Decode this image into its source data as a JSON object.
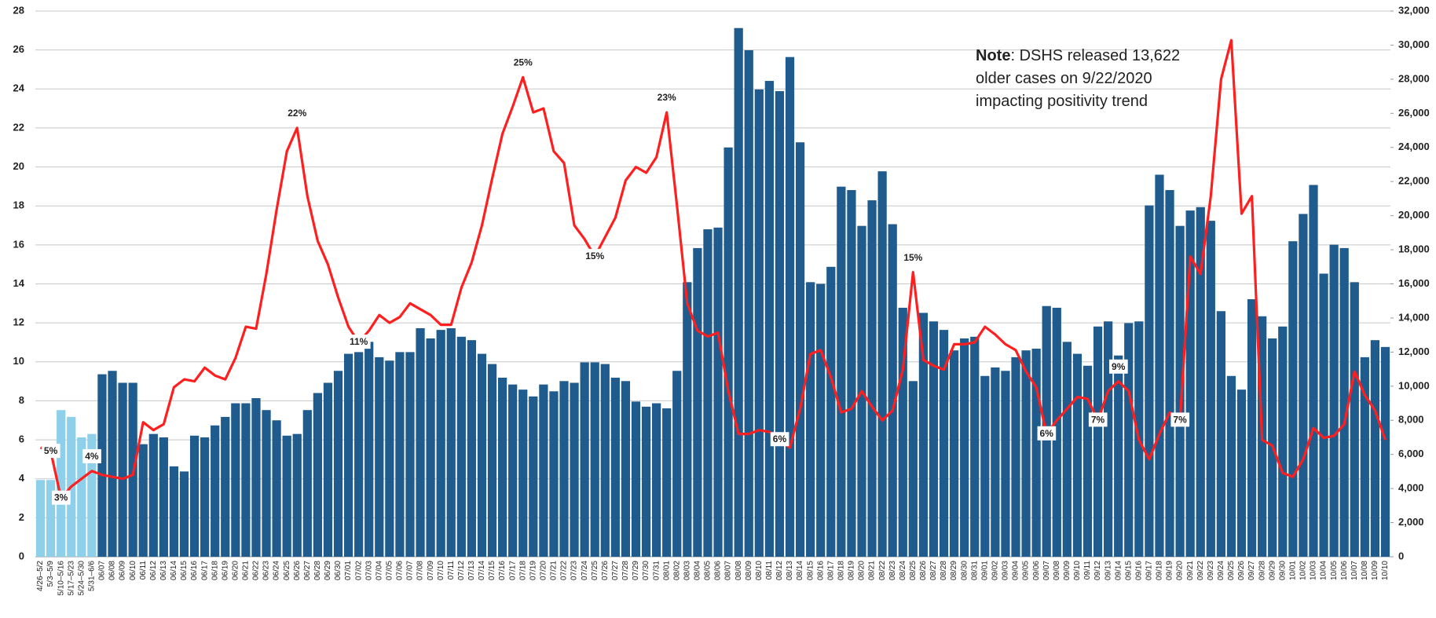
{
  "chart_data": {
    "type": "combo",
    "annotation": {
      "lines": [
        [
          {
            "text": "Note",
            "bold": true
          },
          {
            "text": ": DSHS released 13,622"
          }
        ],
        [
          {
            "text": "older cases on 9/22/2020"
          }
        ],
        [
          {
            "text": "impacting positivity trend"
          }
        ]
      ]
    },
    "categories": [
      "4/26–5/2",
      "5/3–5/9",
      "5/10–5/16",
      "5/17–5/23",
      "5/24–5/30",
      "5/31–6/6",
      "06/07",
      "06/08",
      "06/09",
      "06/10",
      "06/11",
      "06/12",
      "06/13",
      "06/14",
      "06/15",
      "06/16",
      "06/17",
      "06/18",
      "06/19",
      "06/20",
      "06/21",
      "06/22",
      "06/23",
      "06/24",
      "06/25",
      "06/26",
      "06/27",
      "06/28",
      "06/29",
      "06/30",
      "07/01",
      "07/02",
      "07/03",
      "07/04",
      "07/05",
      "07/06",
      "07/07",
      "07/08",
      "07/09",
      "07/10",
      "07/11",
      "07/12",
      "07/13",
      "07/14",
      "07/15",
      "07/16",
      "07/17",
      "07/18",
      "07/19",
      "07/20",
      "07/21",
      "07/22",
      "07/23",
      "07/24",
      "07/25",
      "07/26",
      "07/27",
      "07/28",
      "07/29",
      "07/30",
      "07/31",
      "08/01",
      "08/02",
      "08/03",
      "08/04",
      "08/05",
      "08/06",
      "08/07",
      "08/08",
      "08/09",
      "08/10",
      "08/11",
      "08/12",
      "08/13",
      "08/14",
      "08/15",
      "08/16",
      "08/17",
      "08/18",
      "08/19",
      "08/20",
      "08/21",
      "08/22",
      "08/23",
      "08/24",
      "08/25",
      "08/26",
      "08/27",
      "08/28",
      "08/29",
      "08/30",
      "08/31",
      "09/01",
      "09/02",
      "09/03",
      "09/04",
      "09/05",
      "09/06",
      "09/07",
      "09/08",
      "09/09",
      "09/10",
      "09/11",
      "09/12",
      "09/13",
      "09/14",
      "09/15",
      "09/16",
      "09/17",
      "09/18",
      "09/19",
      "09/20",
      "09/21",
      "09/22",
      "09/23",
      "09/24",
      "09/25",
      "09/26",
      "09/27",
      "09/28",
      "09/29",
      "09/30",
      "10/01",
      "10/02",
      "10/03",
      "10/04",
      "10/05",
      "10/06",
      "10/07",
      "10/08",
      "10/09",
      "10/10"
    ],
    "series": [
      {
        "type": "bar",
        "axis": "y2",
        "colors": [
          "#8ecfe9",
          "#8ecfe9",
          "#8ecfe9",
          "#8ecfe9",
          "#8ecfe9",
          "#8ecfe9",
          "#1f5b8c",
          "#1f5b8c",
          "#1f5b8c",
          "#1f5b8c",
          "#1f5b8c",
          "#1f5b8c",
          "#1f5b8c",
          "#1f5b8c",
          "#1f5b8c",
          "#1f5b8c",
          "#1f5b8c",
          "#1f5b8c",
          "#1f5b8c",
          "#1f5b8c",
          "#1f5b8c",
          "#1f5b8c",
          "#1f5b8c",
          "#1f5b8c",
          "#1f5b8c",
          "#1f5b8c",
          "#1f5b8c",
          "#1f5b8c",
          "#1f5b8c",
          "#1f5b8c",
          "#1f5b8c",
          "#1f5b8c",
          "#1f5b8c",
          "#1f5b8c",
          "#1f5b8c",
          "#1f5b8c",
          "#1f5b8c",
          "#1f5b8c",
          "#1f5b8c",
          "#1f5b8c",
          "#1f5b8c",
          "#1f5b8c",
          "#1f5b8c",
          "#1f5b8c",
          "#1f5b8c",
          "#1f5b8c",
          "#1f5b8c",
          "#1f5b8c",
          "#1f5b8c",
          "#1f5b8c",
          "#1f5b8c",
          "#1f5b8c",
          "#1f5b8c",
          "#1f5b8c",
          "#1f5b8c",
          "#1f5b8c",
          "#1f5b8c",
          "#1f5b8c",
          "#1f5b8c",
          "#1f5b8c",
          "#1f5b8c",
          "#1f5b8c",
          "#1f5b8c",
          "#1f5b8c",
          "#1f5b8c",
          "#1f5b8c",
          "#1f5b8c",
          "#1f5b8c",
          "#1f5b8c",
          "#1f5b8c",
          "#1f5b8c",
          "#1f5b8c",
          "#1f5b8c",
          "#1f5b8c",
          "#1f5b8c",
          "#1f5b8c",
          "#1f5b8c",
          "#1f5b8c",
          "#1f5b8c",
          "#1f5b8c",
          "#1f5b8c",
          "#1f5b8c",
          "#1f5b8c",
          "#1f5b8c",
          "#1f5b8c",
          "#1f5b8c",
          "#1f5b8c",
          "#1f5b8c",
          "#1f5b8c",
          "#1f5b8c",
          "#1f5b8c",
          "#1f5b8c",
          "#1f5b8c",
          "#1f5b8c",
          "#1f5b8c",
          "#1f5b8c",
          "#1f5b8c",
          "#1f5b8c",
          "#1f5b8c",
          "#1f5b8c",
          "#1f5b8c",
          "#1f5b8c",
          "#1f5b8c",
          "#1f5b8c",
          "#1f5b8c",
          "#1f5b8c",
          "#1f5b8c",
          "#1f5b8c",
          "#1f5b8c",
          "#1f5b8c",
          "#1f5b8c",
          "#1f5b8c",
          "#1f5b8c",
          "#1f5b8c",
          "#1f5b8c",
          "#1f5b8c",
          "#1f5b8c",
          "#1f5b8c",
          "#1f5b8c",
          "#1f5b8c",
          "#1f5b8c",
          "#1f5b8c",
          "#1f5b8c",
          "#1f5b8c",
          "#1f5b8c",
          "#1f5b8c",
          "#1f5b8c",
          "#1f5b8c",
          "#1f5b8c",
          "#1f5b8c",
          "#1f5b8c",
          "#1f5b8c"
        ],
        "values": [
          4500,
          4500,
          8600,
          8200,
          7000,
          7200,
          10700,
          10900,
          10200,
          10200,
          6600,
          7200,
          7000,
          5300,
          5000,
          7100,
          7000,
          7700,
          8200,
          9000,
          9000,
          9300,
          8600,
          8000,
          7100,
          7200,
          8600,
          9600,
          10200,
          10900,
          11900,
          12000,
          12600,
          11700,
          11500,
          12000,
          12000,
          13400,
          12800,
          13300,
          13400,
          12900,
          12700,
          11900,
          11300,
          10500,
          10100,
          9800,
          9400,
          10100,
          9700,
          10300,
          10200,
          11400,
          11400,
          11300,
          10500,
          10300,
          9100,
          8800,
          9000,
          8700,
          10900,
          16100,
          18100,
          19200,
          19300,
          24000,
          31000,
          29700,
          27400,
          27900,
          27300,
          29300,
          24300,
          16100,
          16000,
          17000,
          21700,
          21500,
          19400,
          20900,
          22600,
          19500,
          14600,
          10300,
          14300,
          13800,
          13300,
          12100,
          12800,
          12900,
          10600,
          11100,
          10900,
          11700,
          12100,
          12200,
          14700,
          14600,
          12600,
          11900,
          11200,
          13500,
          13800,
          11800,
          13700,
          13800,
          20600,
          22400,
          21500,
          19400,
          20300,
          20500,
          19700,
          14400,
          10600,
          9800,
          15100,
          14100,
          12800,
          13500,
          18500,
          20100,
          21800,
          16600,
          18300,
          18100,
          16100,
          11700,
          12700,
          12300
        ]
      },
      {
        "type": "line",
        "color": "#ff1f1f",
        "values": [
          5.6,
          5.4,
          3.0,
          3.6,
          4.0,
          4.4,
          4.2,
          4.1,
          4.0,
          4.2,
          6.9,
          6.5,
          6.8,
          8.7,
          9.1,
          9.0,
          9.7,
          9.3,
          9.1,
          10.2,
          11.8,
          11.7,
          14.5,
          17.8,
          20.8,
          22.0,
          18.5,
          16.2,
          15.0,
          13.3,
          11.8,
          11.0,
          11.6,
          12.4,
          12.0,
          12.3,
          13.0,
          12.7,
          12.4,
          11.9,
          11.9,
          13.8,
          15.1,
          17.0,
          19.4,
          21.7,
          23.1,
          24.6,
          22.8,
          23.0,
          20.8,
          20.2,
          17.0,
          16.3,
          15.4,
          16.4,
          17.4,
          19.3,
          20.0,
          19.7,
          20.5,
          22.8,
          18.0,
          13.0,
          11.6,
          11.3,
          11.5,
          8.5,
          6.3,
          6.3,
          6.5,
          6.4,
          6.0,
          5.6,
          7.6,
          10.4,
          10.6,
          9.2,
          7.4,
          7.6,
          8.5,
          7.7,
          7.0,
          7.5,
          9.6,
          14.6,
          10.1,
          9.8,
          9.6,
          10.9,
          10.9,
          11.0,
          11.8,
          11.4,
          10.9,
          10.6,
          9.5,
          8.7,
          6.3,
          7.0,
          7.6,
          8.2,
          8.1,
          7.0,
          8.5,
          9.0,
          8.5,
          6.0,
          5.0,
          6.3,
          7.4,
          7.0,
          15.4,
          14.5,
          18.5,
          24.5,
          26.5,
          17.6,
          18.5,
          6.0,
          5.7,
          4.3,
          4.1,
          5.0,
          6.6,
          6.1,
          6.2,
          6.8,
          9.5,
          8.3,
          7.5,
          6.0
        ],
        "value_labels": [
          null,
          "5%",
          "3%",
          null,
          null,
          "4%",
          null,
          null,
          null,
          null,
          null,
          null,
          null,
          null,
          null,
          null,
          null,
          null,
          null,
          null,
          null,
          null,
          null,
          null,
          null,
          "22%",
          null,
          null,
          null,
          null,
          null,
          "11%",
          null,
          null,
          null,
          null,
          null,
          null,
          null,
          null,
          null,
          null,
          null,
          null,
          null,
          null,
          null,
          "25%",
          null,
          null,
          null,
          null,
          null,
          null,
          "15%",
          null,
          null,
          null,
          null,
          null,
          null,
          "23%",
          null,
          null,
          null,
          null,
          null,
          null,
          null,
          null,
          null,
          null,
          "6%",
          null,
          null,
          null,
          null,
          null,
          null,
          null,
          null,
          null,
          null,
          null,
          null,
          "15%",
          null,
          null,
          null,
          null,
          null,
          null,
          null,
          null,
          null,
          null,
          null,
          null,
          "6%",
          null,
          null,
          null,
          null,
          "7%",
          null,
          "9%",
          null,
          null,
          null,
          null,
          null,
          "7%",
          null,
          null,
          null,
          null,
          null,
          null,
          null,
          null,
          null,
          null,
          null,
          null,
          null,
          null,
          null,
          null,
          null,
          null,
          null,
          null
        ]
      }
    ],
    "ylim": [
      0,
      28
    ],
    "yticks": [
      0,
      2,
      4,
      6,
      8,
      10,
      12,
      14,
      16,
      18,
      20,
      22,
      24,
      26,
      28
    ],
    "y2lim": [
      0,
      32000
    ],
    "y2ticks": [
      0,
      {
        "value": 2000,
        "label": "2,000"
      },
      {
        "value": 4000,
        "label": "4,000"
      },
      {
        "value": 6000,
        "label": "6,000"
      },
      {
        "value": 8000,
        "label": "8,000"
      },
      {
        "value": 10000,
        "label": "10,000"
      },
      {
        "value": 12000,
        "label": "12,000"
      },
      {
        "value": 14000,
        "label": "14,000"
      },
      {
        "value": 16000,
        "label": "16,000"
      },
      {
        "value": 18000,
        "label": "18,000"
      },
      {
        "value": 20000,
        "label": "20,000"
      },
      {
        "value": 22000,
        "label": "22,000"
      },
      {
        "value": 24000,
        "label": "24,000"
      },
      {
        "value": 26000,
        "label": "26,000"
      },
      {
        "value": 28000,
        "label": "28,000"
      },
      {
        "value": 30000,
        "label": "30,000"
      },
      {
        "value": 32000,
        "label": "32,000"
      }
    ],
    "grid": true
  }
}
